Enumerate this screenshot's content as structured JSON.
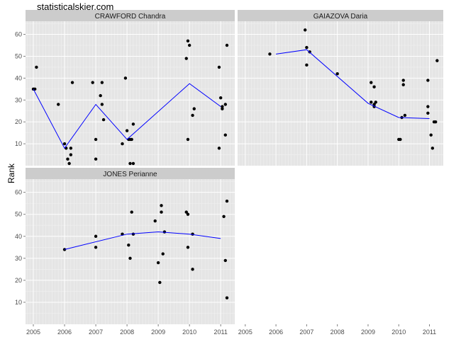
{
  "site_title": "statisticalskier.com",
  "chart_data": {
    "type": "scatter",
    "ylabel": "Rank",
    "xlabel": "",
    "xlim": [
      2004.75,
      2011.45
    ],
    "ylim": [
      0,
      66
    ],
    "x_ticks": [
      "2005",
      "2006",
      "2007",
      "2008",
      "2009",
      "2010",
      "2011"
    ],
    "y_ticks": [
      "10",
      "20",
      "30",
      "40",
      "50",
      "60"
    ],
    "colors": {
      "panel_bg": "#e5e5e5",
      "strip_bg": "#cccccc",
      "grid": "#ffffff",
      "points": "#000000",
      "line": "#0000ff"
    },
    "panels": [
      {
        "name": "CRAWFORD Chandra",
        "points": [
          [
            2005.0,
            35
          ],
          [
            2005.05,
            35
          ],
          [
            2005.1,
            45
          ],
          [
            2005.8,
            28
          ],
          [
            2006.0,
            10
          ],
          [
            2006.05,
            8
          ],
          [
            2006.1,
            3
          ],
          [
            2006.15,
            1
          ],
          [
            2006.2,
            8
          ],
          [
            2006.2,
            5
          ],
          [
            2006.25,
            38
          ],
          [
            2006.9,
            38
          ],
          [
            2007.0,
            12
          ],
          [
            2007.0,
            3
          ],
          [
            2007.15,
            32
          ],
          [
            2007.2,
            38
          ],
          [
            2007.2,
            28
          ],
          [
            2007.25,
            21
          ],
          [
            2007.85,
            10
          ],
          [
            2007.95,
            40
          ],
          [
            2008.0,
            16
          ],
          [
            2008.05,
            12
          ],
          [
            2008.1,
            12
          ],
          [
            2008.15,
            12
          ],
          [
            2008.1,
            1
          ],
          [
            2008.2,
            1
          ],
          [
            2008.2,
            19
          ],
          [
            2009.9,
            49
          ],
          [
            2009.95,
            57
          ],
          [
            2010.0,
            55
          ],
          [
            2009.95,
            12
          ],
          [
            2010.1,
            23
          ],
          [
            2010.15,
            26
          ],
          [
            2010.95,
            45
          ],
          [
            2010.95,
            8
          ],
          [
            2011.0,
            31
          ],
          [
            2011.05,
            27
          ],
          [
            2011.05,
            26
          ],
          [
            2011.15,
            28
          ],
          [
            2011.15,
            14
          ],
          [
            2011.2,
            55
          ]
        ],
        "line": [
          [
            2005.0,
            35
          ],
          [
            2006.0,
            8
          ],
          [
            2007.0,
            28
          ],
          [
            2008.0,
            12
          ],
          [
            2010.0,
            37.5
          ],
          [
            2011.0,
            27
          ]
        ]
      },
      {
        "name": "GAIAZOVA Daria",
        "points": [
          [
            2005.8,
            51
          ],
          [
            2006.95,
            62
          ],
          [
            2007.0,
            46
          ],
          [
            2007.0,
            54
          ],
          [
            2007.1,
            52
          ],
          [
            2008.0,
            42
          ],
          [
            2009.1,
            38
          ],
          [
            2009.1,
            29
          ],
          [
            2009.2,
            36
          ],
          [
            2009.2,
            28
          ],
          [
            2009.2,
            27
          ],
          [
            2009.25,
            29
          ],
          [
            2010.0,
            12
          ],
          [
            2010.05,
            12
          ],
          [
            2010.1,
            22
          ],
          [
            2010.15,
            39
          ],
          [
            2010.15,
            37
          ],
          [
            2010.2,
            23
          ],
          [
            2010.95,
            39
          ],
          [
            2010.95,
            27
          ],
          [
            2010.95,
            24
          ],
          [
            2011.05,
            14
          ],
          [
            2011.1,
            8
          ],
          [
            2011.15,
            20
          ],
          [
            2011.2,
            20
          ],
          [
            2011.25,
            48
          ]
        ],
        "line": [
          [
            2006.0,
            51
          ],
          [
            2007.0,
            53
          ],
          [
            2009.0,
            28.5
          ],
          [
            2010.0,
            22
          ],
          [
            2011.0,
            21.5
          ]
        ]
      },
      {
        "name": "JONES Perianne",
        "points": [
          [
            2006.0,
            34
          ],
          [
            2007.0,
            40
          ],
          [
            2007.0,
            35
          ],
          [
            2007.85,
            41
          ],
          [
            2008.05,
            36
          ],
          [
            2008.1,
            30
          ],
          [
            2008.15,
            51
          ],
          [
            2008.2,
            41
          ],
          [
            2008.9,
            47
          ],
          [
            2009.0,
            28
          ],
          [
            2009.05,
            19
          ],
          [
            2009.1,
            51
          ],
          [
            2009.1,
            54
          ],
          [
            2009.15,
            32
          ],
          [
            2009.2,
            42
          ],
          [
            2009.9,
            51
          ],
          [
            2009.95,
            35
          ],
          [
            2009.95,
            50
          ],
          [
            2010.1,
            41
          ],
          [
            2010.1,
            25
          ],
          [
            2011.1,
            49
          ],
          [
            2011.15,
            29
          ],
          [
            2011.2,
            56
          ],
          [
            2011.2,
            12
          ]
        ],
        "line": [
          [
            2006.0,
            34
          ],
          [
            2008.0,
            41
          ],
          [
            2009.0,
            42
          ],
          [
            2010.0,
            41
          ],
          [
            2011.0,
            39
          ]
        ]
      }
    ]
  }
}
